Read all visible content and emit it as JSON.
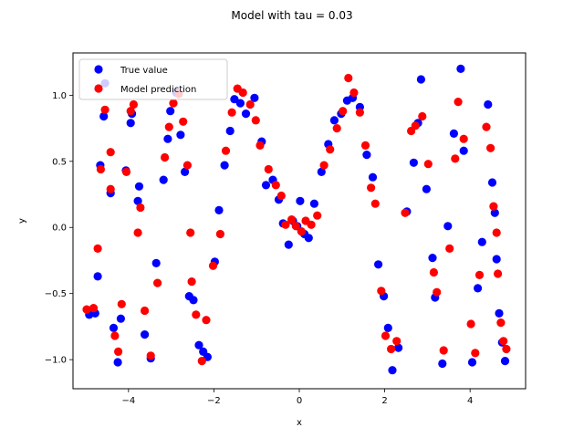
{
  "chart_data": {
    "type": "scatter",
    "title": "Model with tau = 0.03",
    "xlabel": "x",
    "ylabel": "y",
    "xlim": [
      -5.3,
      5.3
    ],
    "ylim": [
      -1.22,
      1.32
    ],
    "xticks": [
      -4,
      -2,
      0,
      2,
      4
    ],
    "yticks": [
      -1.0,
      -0.5,
      0.0,
      0.5,
      1.0
    ],
    "grid": false,
    "legend_position": "top-left",
    "series": [
      {
        "name": "True value",
        "color": "#0000ff",
        "points": [
          [
            -4.92,
            -0.66
          ],
          [
            -4.78,
            -0.65
          ],
          [
            -4.72,
            -0.37
          ],
          [
            -4.66,
            0.47
          ],
          [
            -4.58,
            0.84
          ],
          [
            -4.55,
            1.09
          ],
          [
            -4.42,
            0.26
          ],
          [
            -4.35,
            -0.76
          ],
          [
            -4.25,
            -1.02
          ],
          [
            -4.18,
            -0.69
          ],
          [
            -4.06,
            0.43
          ],
          [
            -3.95,
            0.79
          ],
          [
            -3.92,
            0.86
          ],
          [
            -3.78,
            0.2
          ],
          [
            -3.75,
            0.31
          ],
          [
            -3.62,
            -0.81
          ],
          [
            -3.48,
            -0.99
          ],
          [
            -3.35,
            -0.27
          ],
          [
            -3.18,
            0.36
          ],
          [
            -3.08,
            0.67
          ],
          [
            -3.02,
            0.88
          ],
          [
            -2.88,
            1.02
          ],
          [
            -2.78,
            0.7
          ],
          [
            -2.68,
            0.42
          ],
          [
            -2.58,
            -0.52
          ],
          [
            -2.48,
            -0.55
          ],
          [
            -2.35,
            -0.89
          ],
          [
            -2.25,
            -0.94
          ],
          [
            -2.15,
            -0.98
          ],
          [
            -1.98,
            -0.26
          ],
          [
            -1.88,
            0.13
          ],
          [
            -1.75,
            0.47
          ],
          [
            -1.62,
            0.73
          ],
          [
            -1.52,
            0.97
          ],
          [
            -1.38,
            0.94
          ],
          [
            -1.25,
            0.86
          ],
          [
            -1.05,
            0.98
          ],
          [
            -0.88,
            0.65
          ],
          [
            -0.78,
            0.32
          ],
          [
            -0.62,
            0.36
          ],
          [
            -0.48,
            0.21
          ],
          [
            -0.38,
            0.03
          ],
          [
            -0.25,
            -0.13
          ],
          [
            -0.15,
            0.05
          ],
          [
            -0.05,
            0.01
          ],
          [
            0.02,
            0.2
          ],
          [
            0.12,
            -0.05
          ],
          [
            0.22,
            -0.08
          ],
          [
            0.35,
            0.18
          ],
          [
            0.52,
            0.42
          ],
          [
            0.68,
            0.63
          ],
          [
            0.82,
            0.81
          ],
          [
            0.98,
            0.86
          ],
          [
            1.12,
            0.96
          ],
          [
            1.25,
            0.98
          ],
          [
            1.42,
            0.91
          ],
          [
            1.58,
            0.55
          ],
          [
            1.72,
            0.38
          ],
          [
            1.85,
            -0.28
          ],
          [
            1.98,
            -0.52
          ],
          [
            2.08,
            -0.76
          ],
          [
            2.18,
            -1.08
          ],
          [
            2.32,
            -0.91
          ],
          [
            2.52,
            0.12
          ],
          [
            2.68,
            0.49
          ],
          [
            2.78,
            0.79
          ],
          [
            2.85,
            1.12
          ],
          [
            2.98,
            0.29
          ],
          [
            3.12,
            -0.23
          ],
          [
            3.18,
            -0.53
          ],
          [
            3.35,
            -1.03
          ],
          [
            3.48,
            0.01
          ],
          [
            3.62,
            0.71
          ],
          [
            3.78,
            1.2
          ],
          [
            3.85,
            0.58
          ],
          [
            4.05,
            -1.02
          ],
          [
            4.18,
            -0.46
          ],
          [
            4.28,
            -0.11
          ],
          [
            4.42,
            0.93
          ],
          [
            4.52,
            0.34
          ],
          [
            4.58,
            0.11
          ],
          [
            4.62,
            -0.24
          ],
          [
            4.68,
            -0.65
          ],
          [
            4.75,
            -0.87
          ],
          [
            4.82,
            -1.01
          ]
        ]
      },
      {
        "name": "Model prediction",
        "color": "#ff0000",
        "points": [
          [
            -4.98,
            -0.62
          ],
          [
            -4.82,
            -0.61
          ],
          [
            -4.72,
            -0.16
          ],
          [
            -4.65,
            0.44
          ],
          [
            -4.55,
            0.89
          ],
          [
            -4.42,
            0.57
          ],
          [
            -4.42,
            0.29
          ],
          [
            -4.32,
            -0.82
          ],
          [
            -4.24,
            -0.94
          ],
          [
            -4.16,
            -0.58
          ],
          [
            -4.05,
            0.42
          ],
          [
            -3.95,
            0.88
          ],
          [
            -3.88,
            0.93
          ],
          [
            -3.78,
            -0.04
          ],
          [
            -3.72,
            0.15
          ],
          [
            -3.62,
            -0.63
          ],
          [
            -3.48,
            -0.97
          ],
          [
            -3.32,
            -0.42
          ],
          [
            -3.15,
            0.53
          ],
          [
            -3.05,
            0.76
          ],
          [
            -2.95,
            0.94
          ],
          [
            -2.82,
            1.01
          ],
          [
            -2.72,
            0.8
          ],
          [
            -2.62,
            0.47
          ],
          [
            -2.55,
            -0.04
          ],
          [
            -2.52,
            -0.41
          ],
          [
            -2.42,
            -0.66
          ],
          [
            -2.28,
            -1.01
          ],
          [
            -2.18,
            -0.7
          ],
          [
            -2.02,
            -0.29
          ],
          [
            -1.85,
            -0.05
          ],
          [
            -1.72,
            0.58
          ],
          [
            -1.58,
            0.87
          ],
          [
            -1.45,
            1.05
          ],
          [
            -1.32,
            1.02
          ],
          [
            -1.15,
            0.93
          ],
          [
            -1.02,
            0.81
          ],
          [
            -0.92,
            0.62
          ],
          [
            -0.72,
            0.44
          ],
          [
            -0.55,
            0.32
          ],
          [
            -0.42,
            0.24
          ],
          [
            -0.32,
            0.02
          ],
          [
            -0.18,
            0.06
          ],
          [
            -0.08,
            0.01
          ],
          [
            0.05,
            -0.03
          ],
          [
            0.15,
            0.05
          ],
          [
            0.28,
            0.02
          ],
          [
            0.42,
            0.09
          ],
          [
            0.58,
            0.47
          ],
          [
            0.72,
            0.59
          ],
          [
            0.88,
            0.75
          ],
          [
            1.02,
            0.88
          ],
          [
            1.15,
            1.13
          ],
          [
            1.28,
            1.02
          ],
          [
            1.42,
            0.87
          ],
          [
            1.55,
            0.62
          ],
          [
            1.68,
            0.3
          ],
          [
            1.78,
            0.18
          ],
          [
            1.92,
            -0.48
          ],
          [
            2.02,
            -0.82
          ],
          [
            2.15,
            -0.92
          ],
          [
            2.28,
            -0.86
          ],
          [
            2.48,
            0.11
          ],
          [
            2.62,
            0.73
          ],
          [
            2.72,
            0.77
          ],
          [
            2.88,
            0.84
          ],
          [
            3.02,
            0.48
          ],
          [
            3.15,
            -0.34
          ],
          [
            3.22,
            -0.49
          ],
          [
            3.38,
            -0.93
          ],
          [
            3.52,
            -0.16
          ],
          [
            3.65,
            0.52
          ],
          [
            3.72,
            0.95
          ],
          [
            3.85,
            0.67
          ],
          [
            4.02,
            -0.73
          ],
          [
            4.12,
            -0.95
          ],
          [
            4.22,
            -0.36
          ],
          [
            4.38,
            0.76
          ],
          [
            4.48,
            0.6
          ],
          [
            4.55,
            0.16
          ],
          [
            4.62,
            -0.04
          ],
          [
            4.65,
            -0.35
          ],
          [
            4.72,
            -0.72
          ],
          [
            4.78,
            -0.86
          ],
          [
            4.85,
            -0.92
          ]
        ]
      }
    ]
  }
}
